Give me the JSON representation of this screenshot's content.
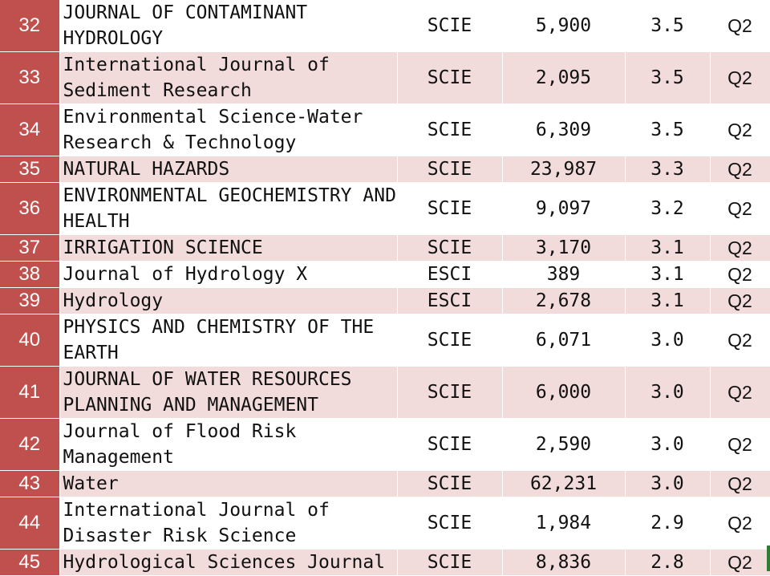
{
  "rows": [
    {
      "num": "32",
      "name": "JOURNAL OF CONTAMINANT HYDROLOGY",
      "index": "SCIE",
      "cites": "5,900",
      "if": "3.5",
      "quartile": "Q2"
    },
    {
      "num": "33",
      "name": "International Journal of Sediment Research",
      "index": "SCIE",
      "cites": "2,095",
      "if": "3.5",
      "quartile": "Q2"
    },
    {
      "num": "34",
      "name": "Environmental Science-Water Research & Technology",
      "index": "SCIE",
      "cites": "6,309",
      "if": "3.5",
      "quartile": "Q2"
    },
    {
      "num": "35",
      "name": "NATURAL HAZARDS",
      "index": "SCIE",
      "cites": "23,987",
      "if": "3.3",
      "quartile": "Q2"
    },
    {
      "num": "36",
      "name": "ENVIRONMENTAL GEOCHEMISTRY AND HEALTH",
      "index": "SCIE",
      "cites": "9,097",
      "if": "3.2",
      "quartile": "Q2"
    },
    {
      "num": "37",
      "name": "IRRIGATION SCIENCE",
      "index": "SCIE",
      "cites": "3,170",
      "if": "3.1",
      "quartile": "Q2"
    },
    {
      "num": "38",
      "name": "Journal of Hydrology X",
      "index": "ESCI",
      "cites": "389",
      "if": "3.1",
      "quartile": "Q2"
    },
    {
      "num": "39",
      "name": "Hydrology",
      "index": "ESCI",
      "cites": "2,678",
      "if": "3.1",
      "quartile": "Q2"
    },
    {
      "num": "40",
      "name": "PHYSICS AND CHEMISTRY OF THE EARTH",
      "index": "SCIE",
      "cites": "6,071",
      "if": "3.0",
      "quartile": "Q2"
    },
    {
      "num": "41",
      "name": "JOURNAL OF WATER RESOURCES PLANNING AND MANAGEMENT",
      "index": "SCIE",
      "cites": "6,000",
      "if": "3.0",
      "quartile": "Q2"
    },
    {
      "num": "42",
      "name": "Journal of Flood Risk Management",
      "index": "SCIE",
      "cites": "2,590",
      "if": "3.0",
      "quartile": "Q2"
    },
    {
      "num": "43",
      "name": "Water",
      "index": "SCIE",
      "cites": "62,231",
      "if": "3.0",
      "quartile": "Q2"
    },
    {
      "num": "44",
      "name": "International Journal of Disaster Risk Science",
      "index": "SCIE",
      "cites": "1,984",
      "if": "2.9",
      "quartile": "Q2"
    },
    {
      "num": "45",
      "name": "Hydrological Sciences Journal",
      "index": "SCIE",
      "cites": "8,836",
      "if": "2.8",
      "quartile": "Q2"
    }
  ],
  "colors": {
    "number_column": "#c0504d",
    "row_shade": "#f2dcdb",
    "row_light": "#ffffff"
  }
}
